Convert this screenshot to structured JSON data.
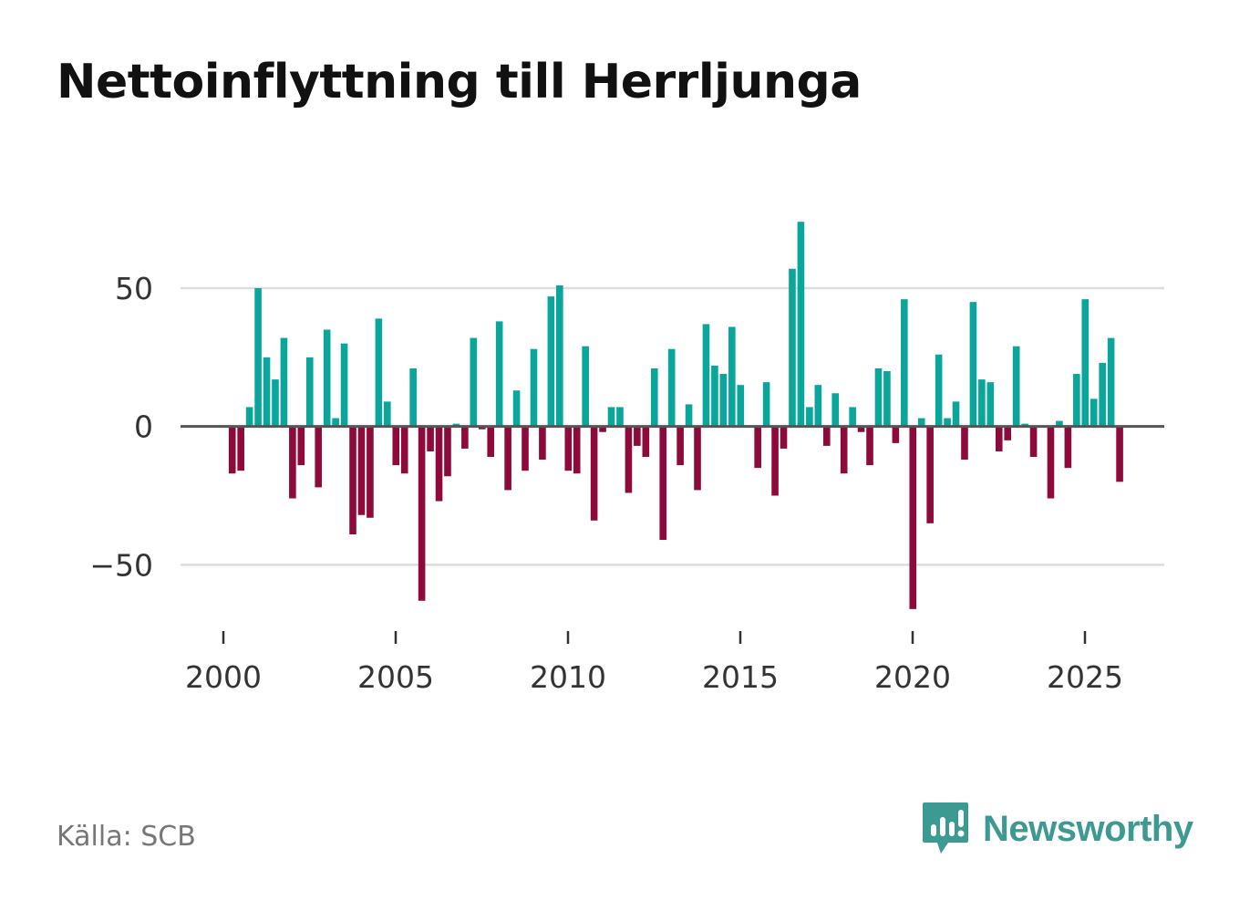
{
  "title": "Nettoinflyttning till Herrljunga",
  "source": "Källa: SCB",
  "brand": {
    "name": "Newsworthy",
    "icon": "newsworthy-logo-icon",
    "color": "#3d9a92"
  },
  "colors": {
    "positive": "#0aa59b",
    "negative": "#8d0a3a",
    "grid": "#dddddd",
    "zero_line": "#555555"
  },
  "chart_data": {
    "type": "bar",
    "title": "Nettoinflyttning till Herrljunga",
    "xlabel": "",
    "ylabel": "",
    "ylim": [
      -70,
      80
    ],
    "xlim": [
      1999.0,
      2027.5
    ],
    "x_ticks": [
      2000,
      2005,
      2010,
      2015,
      2020,
      2025
    ],
    "x_tick_labels": [
      "2000",
      "2005",
      "2010",
      "2015",
      "2020",
      "2025"
    ],
    "y_ticks": [
      50,
      0,
      -50
    ],
    "y_tick_labels": [
      "50",
      "0",
      "−50"
    ],
    "grid": true,
    "legend": "none",
    "quarters_start": "2000-Q1",
    "values": [
      -17,
      -16,
      7,
      50,
      25,
      17,
      32,
      -26,
      -14,
      25,
      -22,
      35,
      3,
      30,
      -39,
      -32,
      -33,
      39,
      9,
      -14,
      -17,
      21,
      -63,
      -9,
      -27,
      -18,
      1,
      -8,
      32,
      -1,
      -11,
      38,
      -23,
      13,
      -16,
      28,
      -12,
      47,
      51,
      -16,
      -17,
      29,
      -34,
      -2,
      7,
      7,
      -24,
      -7,
      -11,
      21,
      -41,
      28,
      -14,
      8,
      -23,
      37,
      22,
      19,
      36,
      15,
      0,
      -15,
      16,
      -25,
      -8,
      57,
      74,
      7,
      15,
      -7,
      12,
      -17,
      7,
      -2,
      -14,
      21,
      20,
      -6,
      46,
      -66,
      3,
      -35,
      26,
      3,
      9,
      -12,
      45,
      17,
      16,
      -9,
      -5,
      29,
      1,
      -11,
      0,
      -26,
      2,
      -15,
      19,
      46,
      10,
      23,
      32,
      -20
    ]
  }
}
